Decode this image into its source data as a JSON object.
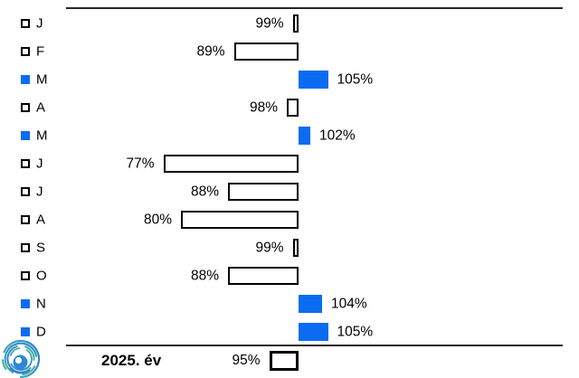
{
  "chart_data": {
    "type": "bar",
    "orientation": "horizontal-diverging",
    "baseline_value": 100,
    "unit": "%",
    "xlim": [
      75,
      105
    ],
    "categories": [
      "J",
      "F",
      "M",
      "A",
      "M",
      "J",
      "J",
      "A",
      "S",
      "O",
      "N",
      "D"
    ],
    "values": [
      99,
      89,
      105,
      98,
      102,
      77,
      88,
      80,
      99,
      88,
      104,
      105
    ],
    "labels": [
      "99%",
      "89%",
      "105%",
      "98%",
      "102%",
      "77%",
      "88%",
      "80%",
      "99%",
      "88%",
      "104%",
      "105%"
    ],
    "total": {
      "label": "2025. év",
      "value": 95,
      "value_label": "95%"
    },
    "colors": {
      "above_baseline_fill": "#0b6cf2",
      "below_baseline_fill": "#ffffff",
      "bar_border": "#000000",
      "axis_line": "#262626",
      "text": "#000000"
    },
    "legend": "months with value >= 100% have blue filled markers/bars; below 100% white outlined",
    "grid": false,
    "title": ""
  },
  "logo": {
    "icon": "swirl-logo"
  }
}
